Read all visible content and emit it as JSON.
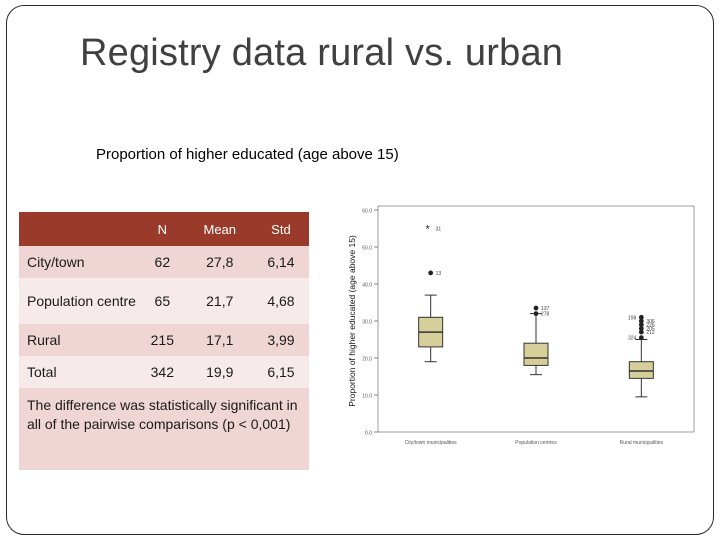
{
  "slide": {
    "title": "Registry data rural vs. urban",
    "subtitle": "Proportion of higher educated (age above 15)"
  },
  "table": {
    "headers": [
      "",
      "N",
      "Mean",
      "Std"
    ],
    "rows": [
      {
        "label": "City/town",
        "n": "62",
        "mean": "27,8",
        "std": "6,14"
      },
      {
        "label": "Population centre",
        "n": "65",
        "mean": "21,7",
        "std": "4,68"
      },
      {
        "label": "Rural",
        "n": "215",
        "mean": "17,1",
        "std": "3,99"
      },
      {
        "label": "Total",
        "n": "342",
        "mean": "19,9",
        "std": "6,15"
      }
    ],
    "note": "The difference was statistically significant in all of the pairwise comparisons (p < 0,001)"
  },
  "chart_data": {
    "type": "boxplot",
    "ylabel": "Proportion of higher educated (age above 15)",
    "ylim": [
      0,
      60
    ],
    "yticks": [
      "0.0",
      "10.0",
      "20.0",
      "30.0",
      "40.0",
      "50.0",
      "60.0"
    ],
    "categories": [
      "City/town municipalities",
      "Population centres",
      "Rural municipalities"
    ],
    "boxes": [
      {
        "min": 19,
        "q1": 23,
        "median": 27,
        "q3": 31,
        "max": 37,
        "outliers": [
          {
            "value": 43,
            "label": "13",
            "style": "dot"
          },
          {
            "value": 55,
            "label": "31",
            "style": "star"
          }
        ]
      },
      {
        "min": 15.5,
        "q1": 18,
        "median": 20,
        "q3": 24,
        "max": 32,
        "outliers": [
          {
            "value": 33.5,
            "label": "137",
            "style": "dot"
          },
          {
            "value": 32,
            "label": "278",
            "style": "dot"
          }
        ]
      },
      {
        "min": 9.5,
        "q1": 14.5,
        "median": 16.5,
        "q3": 19,
        "max": 25,
        "outliers": [
          {
            "value": 27,
            "label": "212",
            "style": "dot"
          },
          {
            "value": 28,
            "label": "205",
            "style": "dot"
          },
          {
            "value": 29,
            "label": "226",
            "style": "dot"
          },
          {
            "value": 30,
            "label": "306",
            "style": "dot"
          },
          {
            "value": 31,
            "label": "198",
            "style": "dot"
          },
          {
            "value": 25.5,
            "label": "324",
            "style": "dot"
          }
        ]
      }
    ],
    "colors": {
      "box_fill": "#d6cf9a",
      "box_stroke": "#333333",
      "header_fill": "#9a3a2a"
    }
  }
}
